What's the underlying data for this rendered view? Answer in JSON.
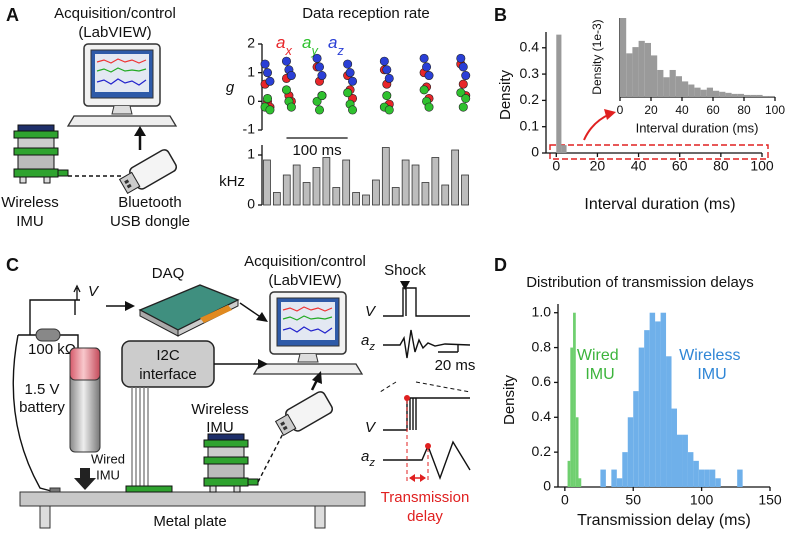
{
  "panel_labels": [
    "A",
    "B",
    "C",
    "D"
  ],
  "panel_a": {
    "computer_label": [
      "Acquisition/control",
      "(LabVIEW)"
    ],
    "imu_label": [
      "Wireless",
      "IMU"
    ],
    "dongle_label": [
      "Bluetooth",
      "USB dongle"
    ]
  },
  "panel_c": {
    "daq": "DAQ",
    "computer_label": [
      "Acquisition/control",
      "(LabVIEW)"
    ],
    "i2c_label": [
      "I2C",
      "interface"
    ],
    "voltage": "V",
    "resistor": "100 kΩ",
    "battery_label": [
      "1.5 V",
      "battery"
    ],
    "wireless_imu_label": [
      "Wireless",
      "IMU"
    ],
    "wired_imu_label": [
      "Wired",
      "IMU"
    ],
    "plate": "Metal plate",
    "shock": "Shock",
    "trace_labels": [
      "V",
      "az",
      "V",
      "az"
    ],
    "time_scale": "20 ms",
    "delay_label": [
      "Transmission",
      "delay"
    ]
  },
  "chart_data": [
    {
      "type": "scatter",
      "title": "Data reception rate",
      "ylabel": "g",
      "xlim": [
        0,
        340
      ],
      "ylim": [
        -1,
        2
      ],
      "yticks": [
        -1,
        0,
        1,
        2
      ],
      "scale_bar": {
        "value": 100,
        "label": "100 ms"
      },
      "x": [
        5,
        9,
        13,
        40,
        44,
        48,
        90,
        94,
        98,
        140,
        144,
        148,
        200,
        204,
        208,
        265,
        269,
        273,
        325,
        329,
        333
      ],
      "series": [
        {
          "name": "ax",
          "color": "#e8262a",
          "values": [
            0.6,
            0.0,
            -0.2,
            0.8,
            0.2,
            0.0,
            1.2,
            0.7,
            0.2,
            0.9,
            0.4,
            0.1,
            1.1,
            0.6,
            -0.1,
            1.0,
            0.5,
            0.1,
            1.3,
            0.6,
            0.2
          ]
        },
        {
          "name": "ay",
          "color": "#2fc12f",
          "values": [
            -0.2,
            0.1,
            -0.3,
            0.4,
            0.0,
            -0.2,
            0.0,
            -0.3,
            0.2,
            0.3,
            -0.1,
            -0.3,
            -0.2,
            0.2,
            -0.3,
            0.4,
            0.0,
            -0.2,
            0.3,
            -0.2,
            0.1
          ]
        },
        {
          "name": "az",
          "color": "#2a3fd6",
          "values": [
            1.3,
            1.0,
            0.7,
            1.4,
            1.1,
            0.9,
            1.5,
            1.2,
            0.9,
            1.3,
            1.0,
            0.7,
            1.4,
            1.1,
            0.8,
            1.5,
            1.2,
            0.9,
            1.5,
            1.2,
            0.9
          ]
        }
      ]
    },
    {
      "type": "bar",
      "ylabel": "kHz",
      "ylim": [
        0,
        1.2
      ],
      "yticks": [
        0,
        1
      ],
      "color": "#bdbdbd",
      "categories": [
        null,
        null,
        null,
        null,
        null,
        null,
        null,
        null,
        null,
        null,
        null,
        null,
        null,
        null,
        null,
        null,
        null,
        null,
        null,
        null,
        null
      ],
      "values": [
        0.9,
        0.25,
        0.6,
        0.8,
        0.45,
        0.75,
        0.95,
        0.35,
        0.9,
        0.25,
        0.2,
        0.5,
        1.15,
        0.35,
        0.9,
        0.8,
        0.45,
        0.95,
        0.4,
        1.1,
        0.6
      ]
    },
    {
      "type": "histogram",
      "xlabel": "Interval duration (ms)",
      "ylabel": "Density",
      "color": "#9a9a9a",
      "xlim": [
        -5,
        100
      ],
      "xticks": [
        0,
        20,
        40,
        60,
        80,
        100
      ],
      "ylim": [
        0,
        0.46
      ],
      "yticks": [
        0,
        0.1,
        0.2,
        0.3,
        0.4
      ],
      "bins": [
        0,
        2.5,
        5
      ],
      "values": [
        0.45,
        0.03
      ]
    },
    {
      "type": "histogram",
      "xlabel": "Interval duration (ms)",
      "ylabel": "Density (1e-3)",
      "color": "#9a9a9a",
      "xlim": [
        0,
        100
      ],
      "xticks": [
        0,
        20,
        40,
        60,
        80,
        100
      ],
      "ylim": [
        0,
        3.8
      ],
      "bins": [
        0,
        4,
        8,
        12,
        16,
        20,
        24,
        28,
        32,
        36,
        40,
        44,
        48,
        52,
        56,
        60,
        64,
        68,
        72,
        76,
        80,
        84,
        88,
        92,
        96,
        100
      ],
      "values": [
        3.8,
        2.1,
        2.4,
        2.7,
        2.6,
        2.0,
        1.3,
        0.95,
        1.3,
        1.0,
        0.75,
        0.6,
        0.45,
        0.35,
        0.45,
        0.3,
        0.25,
        0.2,
        0.15,
        0.15,
        0.1,
        0.1,
        0.1,
        0.05,
        0.05
      ]
    },
    {
      "type": "histogram",
      "title": "Distribution of transmission delays",
      "xlabel": "Transmission delay (ms)",
      "ylabel": "Density",
      "xlim": [
        -5,
        150
      ],
      "xticks": [
        0,
        50,
        100,
        150
      ],
      "ylim": [
        0,
        1.05
      ],
      "yticks": [
        0,
        0.2,
        0.4,
        0.6,
        0.8,
        {
          "value": 1,
          "label": "1.0"
        }
      ],
      "series": [
        {
          "name": "Wired IMU",
          "color": "#6fcf6f",
          "bins": [
            2,
            4,
            6,
            8,
            10,
            12
          ],
          "values": [
            0.15,
            0.8,
            1.0,
            0.4,
            0.05
          ]
        },
        {
          "name": "Wireless IMU",
          "color": "#6fb0ea",
          "bins": [
            26,
            30,
            34,
            38,
            42,
            46,
            50,
            54,
            58,
            62,
            66,
            70,
            74,
            78,
            82,
            86,
            90,
            94,
            98,
            102,
            106,
            110,
            114,
            118,
            122,
            126,
            130
          ],
          "values": [
            0.1,
            0,
            0.1,
            0.05,
            0.2,
            0.4,
            0.55,
            0.8,
            0.9,
            1.0,
            0.95,
            1.0,
            0.75,
            0.45,
            0.3,
            0.3,
            0.2,
            0.15,
            0.1,
            0.1,
            0.1,
            0.05,
            0,
            0,
            0,
            0.1
          ]
        }
      ]
    }
  ]
}
